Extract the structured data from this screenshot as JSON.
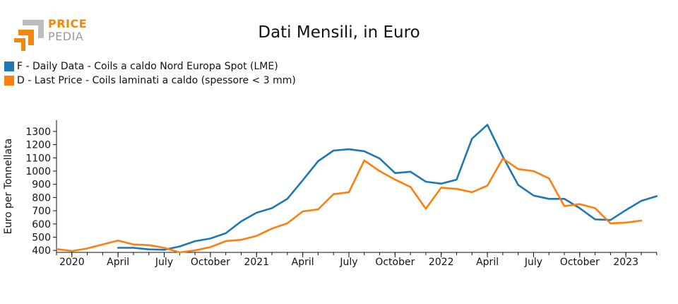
{
  "logo": {
    "line1": "PRICE",
    "line2": "PEDIA"
  },
  "chart_data": {
    "type": "line",
    "title": "Dati Mensili, in Euro",
    "xlabel": "",
    "ylabel": "Euro per Tonnellata",
    "ylim": [
      385,
      1385
    ],
    "yticks": [
      400,
      500,
      600,
      700,
      800,
      900,
      1000,
      1100,
      1200,
      1300
    ],
    "x_range": [
      "2019-12",
      "2023-02"
    ],
    "xticks": [
      {
        "x": "2020-01",
        "label": "2020"
      },
      {
        "x": "2020-04",
        "label": "April"
      },
      {
        "x": "2020-07",
        "label": "July"
      },
      {
        "x": "2020-10",
        "label": "October"
      },
      {
        "x": "2021-01",
        "label": "2021"
      },
      {
        "x": "2021-04",
        "label": "April"
      },
      {
        "x": "2021-07",
        "label": "July"
      },
      {
        "x": "2021-10",
        "label": "October"
      },
      {
        "x": "2022-01",
        "label": "2022"
      },
      {
        "x": "2022-04",
        "label": "April"
      },
      {
        "x": "2022-07",
        "label": "July"
      },
      {
        "x": "2022-10",
        "label": "October"
      },
      {
        "x": "2023-01",
        "label": "2023"
      }
    ],
    "legend_position": "top-left",
    "grid": false,
    "series": [
      {
        "name": "F - Daily Data - Coils a caldo Nord Europa Spot (LME)",
        "color": "#1f77b4",
        "x": [
          "2020-04",
          "2020-05",
          "2020-06",
          "2020-07",
          "2020-08",
          "2020-09",
          "2020-10",
          "2020-11",
          "2020-12",
          "2021-01",
          "2021-02",
          "2021-03",
          "2021-04",
          "2021-05",
          "2021-06",
          "2021-07",
          "2021-08",
          "2021-09",
          "2021-10",
          "2021-11",
          "2021-12",
          "2022-01",
          "2022-02",
          "2022-03",
          "2022-04",
          "2022-05",
          "2022-06",
          "2022-07",
          "2022-08",
          "2022-09",
          "2022-10",
          "2022-11",
          "2022-12",
          "2023-01",
          "2023-02",
          "2023-03"
        ],
        "y": [
          420,
          420,
          408,
          405,
          430,
          470,
          490,
          530,
          620,
          685,
          720,
          790,
          930,
          1075,
          1155,
          1165,
          1150,
          1095,
          985,
          995,
          920,
          905,
          935,
          1245,
          1350,
          1110,
          895,
          815,
          790,
          790,
          720,
          635,
          630,
          705,
          775,
          810
        ]
      },
      {
        "name": "D - Last Price - Coils laminati a caldo (spessore < 3 mm)",
        "color": "#ff7f0e",
        "x": [
          "2019-12",
          "2020-01",
          "2020-02",
          "2020-03",
          "2020-04",
          "2020-05",
          "2020-06",
          "2020-07",
          "2020-08",
          "2020-09",
          "2020-10",
          "2020-11",
          "2020-12",
          "2021-01",
          "2021-02",
          "2021-03",
          "2021-04",
          "2021-05",
          "2021-06",
          "2021-07",
          "2021-08",
          "2021-09",
          "2021-10",
          "2021-11",
          "2021-12",
          "2022-01",
          "2022-02",
          "2022-03",
          "2022-04",
          "2022-05",
          "2022-06",
          "2022-07",
          "2022-08",
          "2022-09",
          "2022-10",
          "2022-11",
          "2022-12",
          "2023-01",
          "2023-02"
        ],
        "y": [
          410,
          395,
          415,
          445,
          475,
          445,
          440,
          420,
          385,
          400,
          425,
          470,
          480,
          510,
          565,
          605,
          695,
          710,
          825,
          840,
          1080,
          1000,
          935,
          880,
          715,
          875,
          865,
          840,
          890,
          1095,
          1015,
          1000,
          945,
          735,
          750,
          720,
          605,
          610,
          625
        ]
      }
    ]
  }
}
